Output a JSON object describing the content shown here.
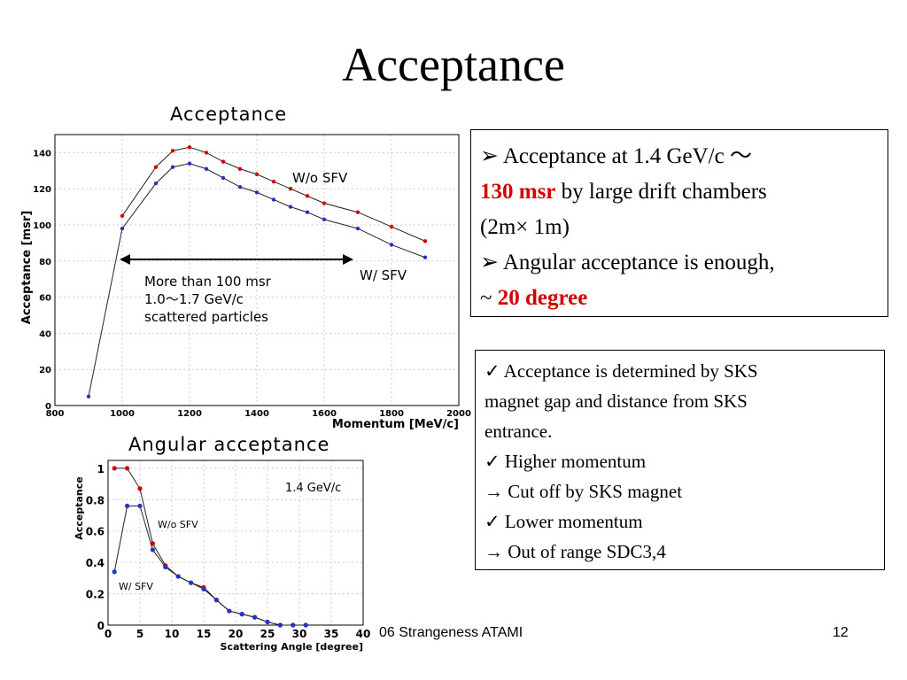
{
  "slide": {
    "title": "Acceptance",
    "footer_text": "06 Strangeness ATAMI",
    "page_number": "12"
  },
  "box1": {
    "line1_text": "Acceptance at 1.4 GeV/c",
    "line1_tilde": "～",
    "line2_highlight": "130 msr",
    "line2_rest": " by large drift chambers",
    "line3": "(2m× 1m)",
    "line4": "Angular acceptance is enough,",
    "line5_prefix": "~ ",
    "line5_highlight": "20 degree"
  },
  "box2": {
    "lines": [
      "✓ Acceptance is determined by SKS",
      "magnet gap and distance from SKS",
      "entrance.",
      "✓ Higher momentum",
      "→ Cut off by SKS magnet",
      "✓ Lower momentum",
      "→ Out of range SDC3,4"
    ]
  },
  "colors": {
    "red": "#d40000",
    "blue": "#2233cc"
  },
  "chart_data": [
    {
      "type": "line",
      "title": "Acceptance",
      "xlabel": "Momentum [MeV/c]",
      "ylabel": "Acceptance [msr]",
      "xlim": [
        800,
        2000
      ],
      "ylim": [
        0,
        150
      ],
      "xticks": [
        800,
        1000,
        1200,
        1400,
        1600,
        1800,
        2000
      ],
      "yticks": [
        0,
        20,
        40,
        60,
        80,
        100,
        120,
        140
      ],
      "grid": true,
      "annotation": [
        "More than 100 msr",
        "1.0～1.7 GeV/c",
        "scattered particles"
      ],
      "series": [
        {
          "name": "W/o SFV",
          "color": "red",
          "x": [
            1000,
            1100,
            1150,
            1200,
            1250,
            1300,
            1350,
            1400,
            1450,
            1500,
            1550,
            1600,
            1700,
            1800,
            1900
          ],
          "y": [
            105,
            132,
            141,
            143,
            140,
            135,
            131,
            128,
            124,
            120,
            116,
            112,
            107,
            99,
            91
          ]
        },
        {
          "name": "W/ SFV",
          "color": "blue",
          "x": [
            900,
            1000,
            1100,
            1150,
            1200,
            1250,
            1300,
            1350,
            1400,
            1450,
            1500,
            1550,
            1600,
            1700,
            1800,
            1900
          ],
          "y": [
            5,
            98,
            123,
            132,
            134,
            131,
            126,
            121,
            118,
            114,
            110,
            107,
            103,
            98,
            89,
            82
          ]
        }
      ]
    },
    {
      "type": "line",
      "title": "Angular acceptance",
      "xlabel": "Scattering Angle [degree]",
      "ylabel": "Acceptance",
      "xlim": [
        0,
        40
      ],
      "ylim": [
        0,
        1.05
      ],
      "xticks": [
        0,
        5,
        10,
        15,
        20,
        25,
        30,
        35,
        40
      ],
      "yticks": [
        0,
        0.2,
        0.4,
        0.6,
        0.8,
        1
      ],
      "grid": true,
      "annotation": [
        "1.4 GeV/c"
      ],
      "series": [
        {
          "name": "W/o SFV",
          "color": "red",
          "x": [
            1,
            3,
            5,
            7,
            9,
            11,
            13,
            15,
            17,
            19,
            21,
            23,
            25,
            27,
            29,
            31
          ],
          "y": [
            1.0,
            1.0,
            0.87,
            0.52,
            0.38,
            0.31,
            0.27,
            0.24,
            0.16,
            0.09,
            0.07,
            0.05,
            0.02,
            0.0,
            0.0,
            0.0
          ]
        },
        {
          "name": "W/ SFV",
          "color": "blue",
          "x": [
            1,
            3,
            5,
            7,
            9,
            11,
            13,
            15,
            17,
            19,
            21,
            23,
            25,
            27,
            29,
            31
          ],
          "y": [
            0.34,
            0.76,
            0.76,
            0.48,
            0.37,
            0.31,
            0.27,
            0.23,
            0.16,
            0.09,
            0.07,
            0.05,
            0.02,
            0.0,
            0.0,
            0.0
          ]
        }
      ]
    }
  ]
}
